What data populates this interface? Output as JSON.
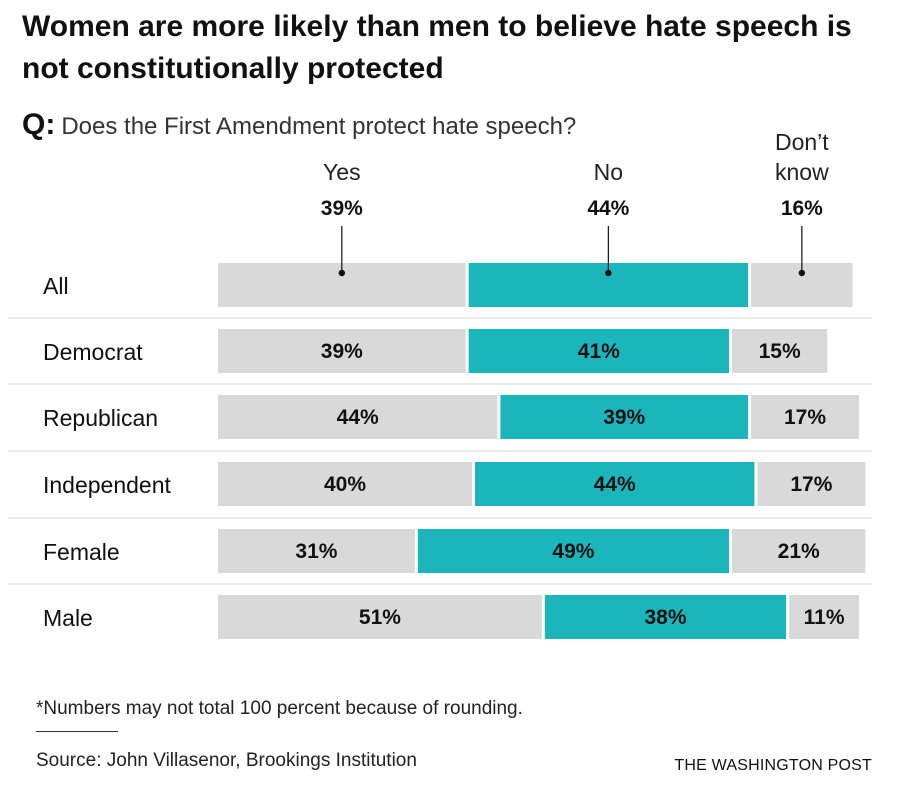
{
  "title": "Women are more likely than men to believe hate speech is not constitutionally protected",
  "question": {
    "prefix": "Q:",
    "text": "Does the First Amendment protect hate speech?"
  },
  "footnote": "*Numbers may not total 100 percent because of rounding.",
  "source": "Source: John Villasenor, Brookings Institution",
  "brand": "THE WASHINGTON POST",
  "colors": {
    "yes": "#d9d9d9",
    "no": "#1bb6bc",
    "dont_know": "#d9d9d9",
    "divider": "#d6d6d6",
    "text": "#111111"
  },
  "chart_data": {
    "type": "bar",
    "orientation": "horizontal",
    "stacked": true,
    "categories": [
      "All",
      "Democrat",
      "Republican",
      "Independent",
      "Female",
      "Male"
    ],
    "series": [
      {
        "name": "Yes",
        "values": [
          39,
          39,
          44,
          40,
          31,
          51
        ]
      },
      {
        "name": "No",
        "values": [
          44,
          41,
          39,
          44,
          49,
          38
        ]
      },
      {
        "name": "Don’t know",
        "values": [
          16,
          15,
          17,
          17,
          21,
          11
        ]
      }
    ],
    "header_labels": [
      "39%",
      "44%",
      "16%"
    ],
    "value_suffix": "%",
    "xlim": [
      0,
      100
    ]
  }
}
